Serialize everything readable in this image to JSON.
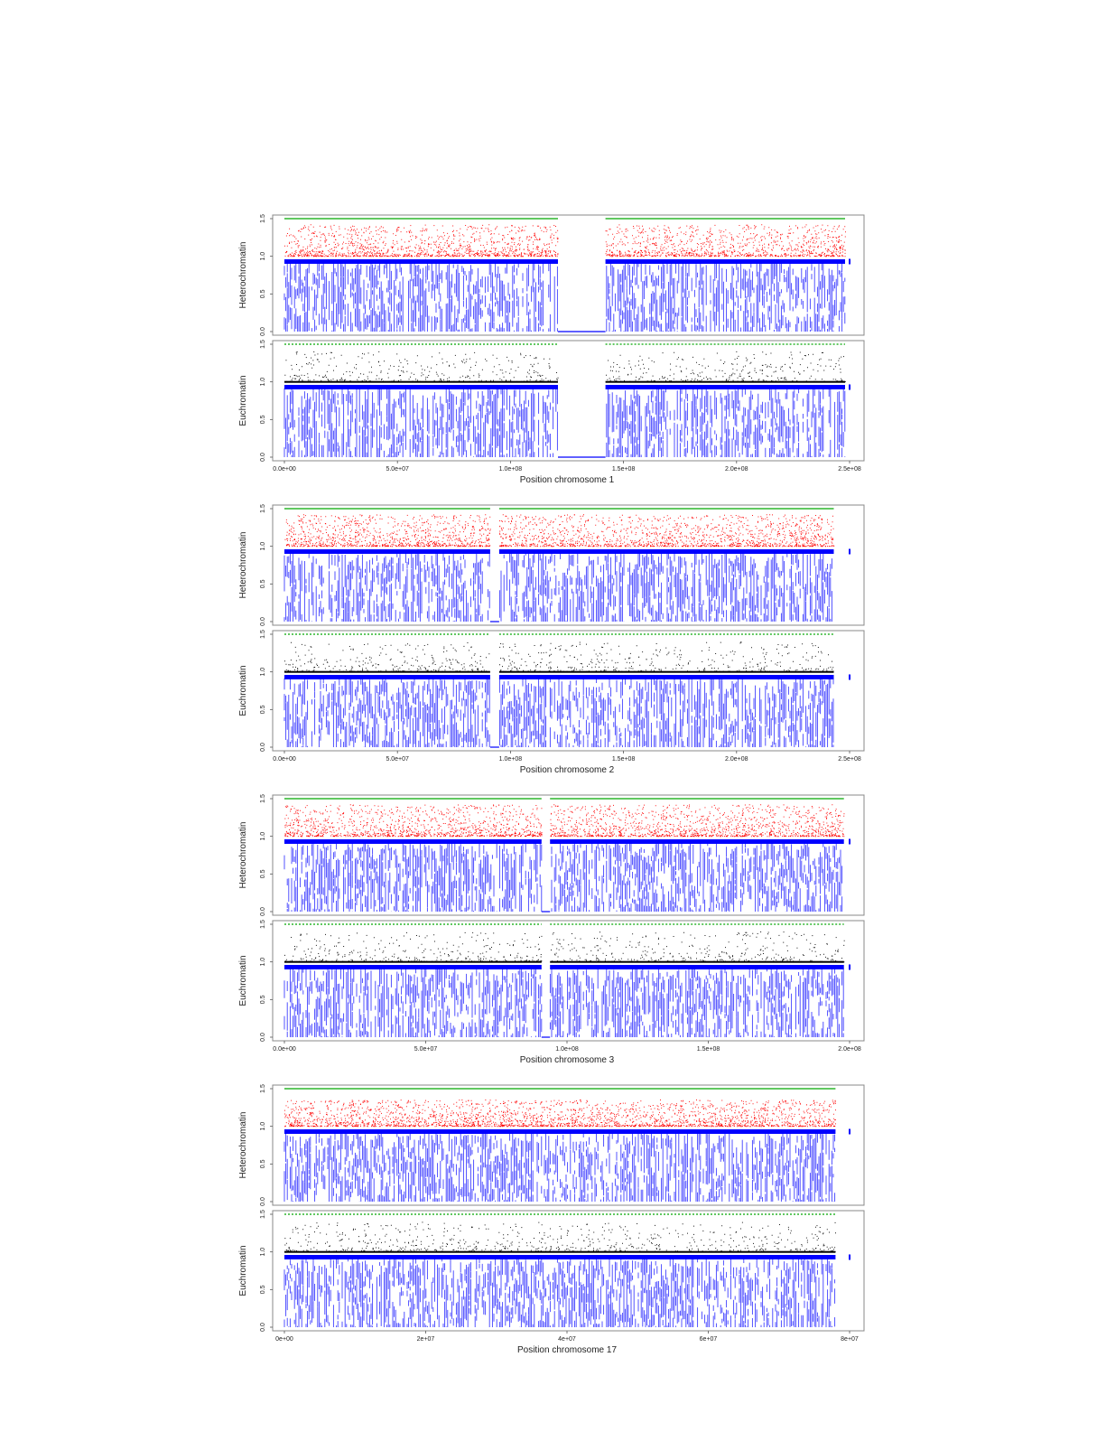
{
  "figure_title": "",
  "chart_data": [
    {
      "type": "scatter",
      "chromosome": "1",
      "xlabel": "Position chromosome  1",
      "xlim": [
        0,
        250000000
      ],
      "xticks": [
        0,
        50000000,
        100000000,
        150000000,
        200000000,
        250000000
      ],
      "xtick_labels": [
        "0.0e+00",
        "5.0e+07",
        "1.0e+08",
        "1.5e+08",
        "2.0e+08",
        "2.5e+08"
      ],
      "gaps": [
        [
          121000000,
          142000000
        ]
      ],
      "data_end": 248000000,
      "panels": [
        {
          "ylabel": "Heterochromatin",
          "ylim": [
            0,
            1.5
          ],
          "yticks": [
            0.0,
            0.5,
            1.0,
            1.5
          ],
          "ytick_labels": [
            "0.0",
            "0.5",
            "1.0",
            "1.5"
          ],
          "series": [
            {
              "name": "upper-track",
              "color": "#2db52d",
              "y": 1.5
            },
            {
              "name": "high-score",
              "color": "#ff0000",
              "range": [
                1.0,
                1.42
              ]
            },
            {
              "name": "baseline",
              "color": "#0000ff",
              "y": 0.93
            },
            {
              "name": "low-score",
              "color": "#0000ff",
              "range": [
                0.0,
                0.93
              ]
            }
          ]
        },
        {
          "ylabel": "Euchromatin",
          "ylim": [
            0,
            1.5
          ],
          "yticks": [
            0.0,
            0.5,
            1.0,
            1.5
          ],
          "ytick_labels": [
            "0.0",
            "0.5",
            "1.0",
            "1.5"
          ],
          "series": [
            {
              "name": "upper-track",
              "color": "#2db52d",
              "y": 1.5
            },
            {
              "name": "high-score",
              "color": "#000000",
              "range": [
                1.0,
                1.4
              ]
            },
            {
              "name": "baseline",
              "color": "#0000ff",
              "y": 0.93
            },
            {
              "name": "low-score",
              "color": "#0000ff",
              "range": [
                0.0,
                0.93
              ]
            }
          ]
        }
      ]
    },
    {
      "type": "scatter",
      "chromosome": "2",
      "xlabel": "Position chromosome  2",
      "xlim": [
        0,
        250000000
      ],
      "xticks": [
        0,
        50000000,
        100000000,
        150000000,
        200000000,
        250000000
      ],
      "xtick_labels": [
        "0.0e+00",
        "5.0e+07",
        "1.0e+08",
        "1.5e+08",
        "2.0e+08",
        "2.5e+08"
      ],
      "gaps": [
        [
          91000000,
          95000000
        ]
      ],
      "data_end": 243000000,
      "panels": [
        {
          "ylabel": "Heterochromatin",
          "ylim": [
            0,
            1.5
          ],
          "yticks": [
            0.0,
            0.5,
            1.0,
            1.5
          ],
          "ytick_labels": [
            "0.0",
            "0.5",
            "1.0",
            "1.5"
          ],
          "series": [
            {
              "name": "upper-track",
              "color": "#2db52d",
              "y": 1.5
            },
            {
              "name": "high-score",
              "color": "#ff0000",
              "range": [
                1.0,
                1.42
              ]
            },
            {
              "name": "baseline",
              "color": "#0000ff",
              "y": 0.93
            },
            {
              "name": "low-score",
              "color": "#0000ff",
              "range": [
                0.0,
                0.93
              ]
            }
          ]
        },
        {
          "ylabel": "Euchromatin",
          "ylim": [
            0,
            1.5
          ],
          "yticks": [
            0.0,
            0.5,
            1.0,
            1.5
          ],
          "ytick_labels": [
            "0.0",
            "0.5",
            "1.0",
            "1.5"
          ],
          "series": [
            {
              "name": "upper-track",
              "color": "#2db52d",
              "y": 1.5
            },
            {
              "name": "high-score",
              "color": "#000000",
              "range": [
                1.0,
                1.4
              ]
            },
            {
              "name": "baseline",
              "color": "#0000ff",
              "y": 0.93
            },
            {
              "name": "low-score",
              "color": "#0000ff",
              "range": [
                0.0,
                0.93
              ]
            }
          ]
        }
      ]
    },
    {
      "type": "scatter",
      "chromosome": "3",
      "xlabel": "Position chromosome  3",
      "xlim": [
        0,
        200000000
      ],
      "xticks": [
        0,
        50000000,
        100000000,
        150000000,
        200000000
      ],
      "xtick_labels": [
        "0.0e+00",
        "5.0e+07",
        "1.0e+08",
        "1.5e+08",
        "2.0e+08"
      ],
      "gaps": [
        [
          91000000,
          94000000
        ]
      ],
      "data_end": 198000000,
      "panels": [
        {
          "ylabel": "Heterochromatin",
          "ylim": [
            0,
            1.5
          ],
          "yticks": [
            0.0,
            0.5,
            1.0,
            1.5
          ],
          "ytick_labels": [
            "0.0",
            "0.5",
            "1.0",
            "1.5"
          ],
          "series": [
            {
              "name": "upper-track",
              "color": "#2db52d",
              "y": 1.5
            },
            {
              "name": "high-score",
              "color": "#ff0000",
              "range": [
                1.0,
                1.42
              ]
            },
            {
              "name": "baseline",
              "color": "#0000ff",
              "y": 0.93
            },
            {
              "name": "low-score",
              "color": "#0000ff",
              "range": [
                0.0,
                0.93
              ]
            }
          ]
        },
        {
          "ylabel": "Euchromatin",
          "ylim": [
            0,
            1.5
          ],
          "yticks": [
            0.0,
            0.5,
            1.0,
            1.5
          ],
          "ytick_labels": [
            "0.0",
            "0.5",
            "1.0",
            "1.5"
          ],
          "series": [
            {
              "name": "upper-track",
              "color": "#2db52d",
              "y": 1.5
            },
            {
              "name": "high-score",
              "color": "#000000",
              "range": [
                1.0,
                1.4
              ]
            },
            {
              "name": "baseline",
              "color": "#0000ff",
              "y": 0.93
            },
            {
              "name": "low-score",
              "color": "#0000ff",
              "range": [
                0.0,
                0.93
              ]
            }
          ]
        }
      ]
    },
    {
      "type": "scatter",
      "chromosome": "17",
      "xlabel": "Position chromosome  17",
      "xlim": [
        0,
        80000000
      ],
      "xticks": [
        0,
        20000000,
        40000000,
        60000000,
        80000000
      ],
      "xtick_labels": [
        "0e+00",
        "2e+07",
        "4e+07",
        "6e+07",
        "8e+07"
      ],
      "gaps": [],
      "data_end": 78000000,
      "panels": [
        {
          "ylabel": "Heterochromatin",
          "ylim": [
            0,
            1.5
          ],
          "yticks": [
            0.0,
            0.5,
            1.0,
            1.5
          ],
          "ytick_labels": [
            "0.0",
            "0.5",
            "1.0",
            "1.5"
          ],
          "series": [
            {
              "name": "upper-track",
              "color": "#2db52d",
              "y": 1.5
            },
            {
              "name": "high-score",
              "color": "#ff0000",
              "range": [
                1.0,
                1.35
              ]
            },
            {
              "name": "baseline",
              "color": "#0000ff",
              "y": 0.93
            },
            {
              "name": "low-score",
              "color": "#0000ff",
              "range": [
                0.0,
                0.93
              ]
            }
          ]
        },
        {
          "ylabel": "Euchromatin",
          "ylim": [
            0,
            1.5
          ],
          "yticks": [
            0.0,
            0.5,
            1.0,
            1.5
          ],
          "ytick_labels": [
            "0.0",
            "0.5",
            "1.0",
            "1.5"
          ],
          "series": [
            {
              "name": "upper-track",
              "color": "#2db52d",
              "y": 1.5
            },
            {
              "name": "high-score",
              "color": "#000000",
              "range": [
                1.0,
                1.4
              ]
            },
            {
              "name": "baseline",
              "color": "#0000ff",
              "y": 0.93
            },
            {
              "name": "low-score",
              "color": "#0000ff",
              "range": [
                0.0,
                0.93
              ]
            }
          ]
        }
      ]
    }
  ]
}
